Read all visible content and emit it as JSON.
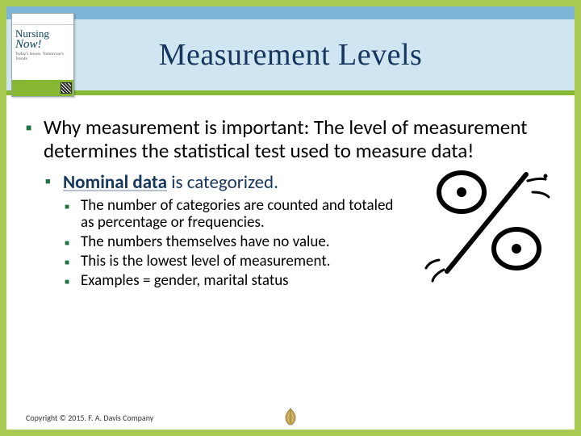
{
  "frame": {
    "border_color": "#a9ca52",
    "band_border_color": "#86b833"
  },
  "header": {
    "title": "Measurement Levels",
    "title_color": "#17365d",
    "title_font": "Times New Roman",
    "title_fontsize": 38,
    "band_top_color": "#7eb6d9",
    "band_main_color": "#cfe6f2",
    "book": {
      "title_line1": "Nursing",
      "title_line2": "Now!",
      "subtitle": "Today's Issues, Tomorrow's Trends",
      "bar_color": "#86b833"
    }
  },
  "bullet_color": "#207245",
  "content": {
    "level1": [
      {
        "text": "Why measurement is important: The level of measurement determines the statistical test used to measure data!",
        "level2": [
          {
            "bold_part": "Nominal data",
            "rest": " is categorized.",
            "level3": [
              "The number of categories are counted and  totaled as percentage or frequencies.",
              "The numbers themselves have no value.",
              "This is the lowest level of measurement.",
              "Examples = gender, marital status"
            ]
          }
        ]
      }
    ]
  },
  "graphic": {
    "type": "percent-sign-cartoon",
    "stroke": "#000000",
    "motion_lines": true
  },
  "footer": {
    "text": "Copyright © 2015. F. A. Davis Company",
    "ornament_color": "#cbae5f"
  }
}
